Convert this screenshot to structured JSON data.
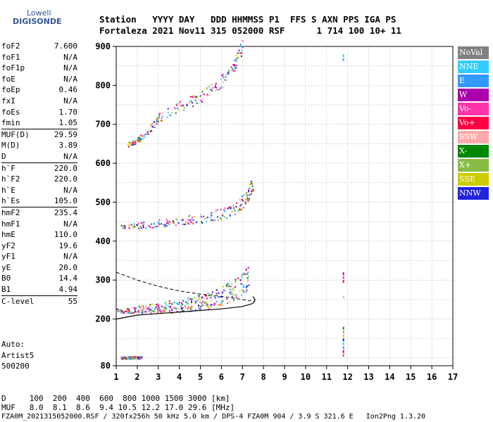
{
  "logo": {
    "top": "Lowell",
    "bottom": "DIGISONDE"
  },
  "header": {
    "line1": "Station   YYYY DAY   DDD HHMMSS P1  FFS S AXN PPS IGA PS",
    "line2": "Fortaleza 2021 Nov11 315 052000 RSF      1 714 100 10+ 11"
  },
  "params": [
    {
      "name": "foF2",
      "value": "7.600"
    },
    {
      "name": "foF1",
      "value": "N/A"
    },
    {
      "name": "foF1p",
      "value": "N/A"
    },
    {
      "name": "foE",
      "value": "N/A"
    },
    {
      "name": "foEp",
      "value": "0.46"
    },
    {
      "name": "fxI",
      "value": "N/A"
    },
    {
      "name": "foEs",
      "value": "1.70"
    },
    {
      "name": "fmin",
      "value": "1.05"
    },
    {
      "name": "MUF(D)",
      "value": "29.59",
      "sep": true
    },
    {
      "name": "M(D)",
      "value": "3.89"
    },
    {
      "name": "D",
      "value": "N/A"
    },
    {
      "name": "h`F",
      "value": "220.0",
      "sep": true
    },
    {
      "name": "h`F2",
      "value": "220.0"
    },
    {
      "name": "h`E",
      "value": "N/A"
    },
    {
      "name": "h`Es",
      "value": "105.0"
    },
    {
      "name": "hmF2",
      "value": "235.4",
      "sep": true
    },
    {
      "name": "hmF1",
      "value": "N/A"
    },
    {
      "name": "hmE",
      "value": "110.0"
    },
    {
      "name": "yF2",
      "value": "19.6"
    },
    {
      "name": "yF1",
      "value": "N/A"
    },
    {
      "name": "yE",
      "value": "20.0"
    },
    {
      "name": "B0",
      "value": "14.4"
    },
    {
      "name": "B1",
      "value": "4.94"
    },
    {
      "name": "C-level",
      "value": "55",
      "sep": true
    }
  ],
  "auto": {
    "l1": "Auto:",
    "l2": "Artist5",
    "l3": "500200"
  },
  "footer": {
    "d_line": "D     100  200  400  600  800 1000 1500 3000 [km]",
    "muf_line": "MUF   8.0  8.1  8.6  9.4 10.5 12.2 17.0 29.6 [MHz]",
    "file_line": "FZA0M_2021315052000.RSF / 320fx256h 50 kHz 5.0 km / DPS-4 FZA0M 904 / 3.9 S 321.6 E   Ion2Png 1.3.20"
  },
  "legend": [
    {
      "label": "NoVal",
      "color": "#808080"
    },
    {
      "label": "NNE",
      "color": "#33ccff"
    },
    {
      "label": "E",
      "color": "#3399ff"
    },
    {
      "label": "W",
      "color": "#aa00aa"
    },
    {
      "label": "Vo-",
      "color": "#ff33aa"
    },
    {
      "label": "Vo+",
      "color": "#ff0044"
    },
    {
      "label": "SSW",
      "color": "#ffaaaa"
    },
    {
      "label": "X-",
      "color": "#008800"
    },
    {
      "label": "X+",
      "color": "#88bb44"
    },
    {
      "label": "SSE",
      "color": "#cccc00"
    },
    {
      "label": "NNW",
      "color": "#2222dd"
    }
  ],
  "chart_data": {
    "type": "scatter",
    "title": "",
    "xlabel": "",
    "ylabel": "",
    "xlim": [
      1,
      17
    ],
    "ylim": [
      80,
      900
    ],
    "xticks": [
      1,
      2,
      3,
      4,
      5,
      6,
      7,
      8,
      9,
      10,
      11,
      12,
      13,
      14,
      15,
      16,
      17
    ],
    "yticks": [
      80,
      200,
      300,
      400,
      500,
      600,
      700,
      800,
      900
    ],
    "grid": true,
    "traces": [
      {
        "x": [
          1.0,
          1.5,
          2.0,
          2.5,
          3.0,
          3.5,
          4.0,
          4.5,
          5.0,
          5.5,
          6.0,
          6.5,
          7.0,
          7.3
        ],
        "y": [
          218,
          219,
          220,
          221,
          222,
          223,
          225,
          228,
          232,
          238,
          246,
          258,
          275,
          290
        ]
      },
      {
        "x": [
          1.2,
          2.0,
          3.0,
          4.0,
          5.0,
          6.0,
          6.8,
          7.2,
          7.5
        ],
        "y": [
          435,
          437,
          440,
          445,
          452,
          462,
          480,
          505,
          540
        ]
      },
      {
        "x": [
          1.5,
          2.0,
          2.5,
          3.0,
          4.0,
          5.0,
          6.0,
          6.6,
          7.0
        ],
        "y": [
          645,
          655,
          680,
          710,
          740,
          760,
          800,
          840,
          890
        ]
      },
      {
        "x": [
          1.2,
          1.4,
          1.6,
          1.8,
          2.0,
          2.2
        ],
        "y": [
          100,
          100,
          100,
          100,
          100,
          100
        ]
      }
    ],
    "profile": {
      "x": [
        1.0,
        2.0,
        3.0,
        4.0,
        5.0,
        6.0,
        7.0,
        7.5,
        7.6,
        7.5
      ],
      "y": [
        200,
        210,
        214,
        218,
        222,
        226,
        232,
        240,
        250,
        258
      ]
    },
    "dashed": {
      "x": [
        1.0,
        2.0,
        3.0,
        4.0,
        5.0,
        6.0,
        7.0,
        7.6
      ],
      "y": [
        320,
        300,
        284,
        272,
        264,
        258,
        250,
        245
      ]
    }
  }
}
